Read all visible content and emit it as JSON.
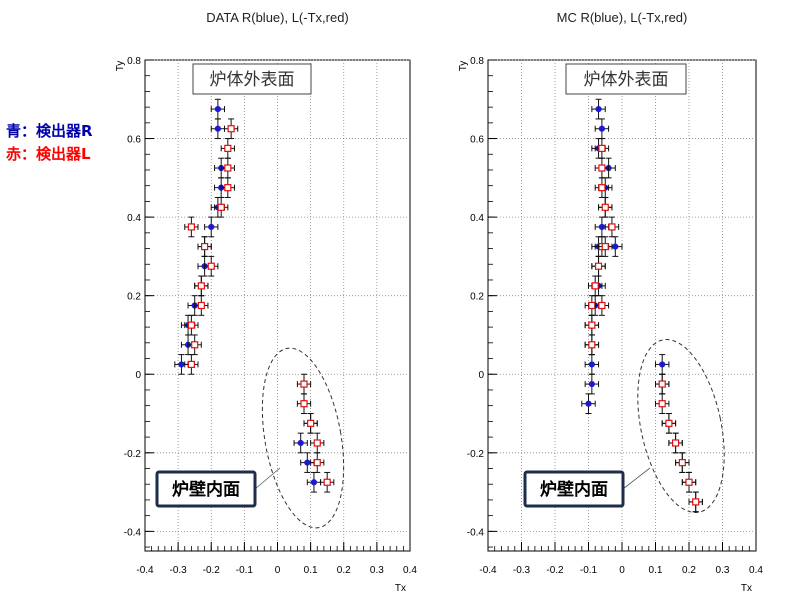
{
  "colors": {
    "blue": "#1a1ad0",
    "red": "#e01010",
    "legend_blue": "#0000aa",
    "legend_red": "#ff0000",
    "grid": "#888888",
    "callout_border": "#1e2d4a"
  },
  "legend": {
    "blue_text": "青：検出器R",
    "red_text": "赤：検出器L"
  },
  "chart_data": [
    {
      "type": "scatter",
      "title": "DATA R(blue), L(-Tx,red)",
      "xlabel": "Tx",
      "ylabel": "Ty",
      "xlim": [
        -0.4,
        0.4
      ],
      "ylim": [
        -0.45,
        0.8
      ],
      "xticks": [
        "-0.4",
        "-0.3",
        "-0.2",
        "-0.1",
        "0",
        "0.1",
        "0.2",
        "0.3",
        "0.4"
      ],
      "yticks": [
        "-0.4",
        "-0.2",
        "0",
        "0.2",
        "0.4",
        "0.6",
        "0.8"
      ],
      "grid": true,
      "annotations": {
        "outer": "炉体外表面",
        "inner": "炉壁内面"
      },
      "series": [
        {
          "name": "R (blue)",
          "marker": "filled-circle",
          "x": [
            -0.29,
            -0.27,
            -0.27,
            -0.25,
            -0.23,
            -0.22,
            -0.22,
            -0.2,
            -0.18,
            -0.17,
            -0.17,
            -0.18,
            -0.18,
            0.07,
            0.09,
            0.1,
            0.11
          ],
          "y": [
            0.025,
            0.075,
            0.125,
            0.175,
            0.225,
            0.275,
            0.325,
            0.375,
            0.425,
            0.475,
            0.525,
            0.625,
            0.675,
            -0.175,
            -0.225,
            -0.125,
            -0.275
          ],
          "xerr": 0.02,
          "yerr": 0.025
        },
        {
          "name": "L (-Tx, red)",
          "marker": "open-square",
          "x": [
            -0.26,
            -0.25,
            -0.26,
            -0.23,
            -0.23,
            -0.2,
            -0.22,
            -0.26,
            -0.17,
            -0.15,
            -0.15,
            -0.15,
            -0.14,
            0.08,
            0.08,
            0.1,
            0.12,
            0.12,
            0.15
          ],
          "y": [
            0.025,
            0.075,
            0.125,
            0.175,
            0.225,
            0.275,
            0.325,
            0.375,
            0.425,
            0.475,
            0.525,
            0.575,
            0.625,
            -0.025,
            -0.075,
            -0.125,
            -0.175,
            -0.225,
            -0.275
          ],
          "xerr": 0.02,
          "yerr": 0.025
        }
      ]
    },
    {
      "type": "scatter",
      "title": "MC R(blue), L(-Tx,red)",
      "xlabel": "Tx",
      "ylabel": "Ty",
      "xlim": [
        -0.4,
        0.4
      ],
      "ylim": [
        -0.45,
        0.8
      ],
      "xticks": [
        "-0.4",
        "-0.3",
        "-0.2",
        "-0.1",
        "0",
        "0.1",
        "0.2",
        "0.3",
        "0.4"
      ],
      "yticks": [
        "-0.4",
        "-0.2",
        "0",
        "0.2",
        "0.4",
        "0.6",
        "0.8"
      ],
      "grid": true,
      "annotations": {
        "outer": "炉体外表面",
        "inner": "炉壁内面"
      },
      "series": [
        {
          "name": "R (blue)",
          "marker": "filled-circle",
          "x": [
            -0.1,
            -0.09,
            -0.09,
            -0.09,
            -0.09,
            -0.08,
            -0.07,
            -0.07,
            -0.07,
            -0.06,
            -0.05,
            -0.05,
            -0.04,
            -0.02,
            -0.06,
            -0.07,
            -0.07,
            0.12,
            0.12,
            0.14,
            0.16,
            0.18,
            0.2,
            0.22
          ],
          "y": [
            -0.075,
            -0.025,
            0.025,
            0.075,
            0.125,
            0.175,
            0.225,
            0.275,
            0.325,
            0.375,
            0.425,
            0.475,
            0.525,
            0.325,
            0.625,
            0.675,
            0.575,
            0.025,
            -0.025,
            -0.125,
            -0.175,
            -0.225,
            -0.275,
            -0.325
          ],
          "xerr": 0.02,
          "yerr": 0.025
        },
        {
          "name": "L (-Tx, red)",
          "marker": "open-square",
          "x": [
            -0.09,
            -0.09,
            -0.09,
            -0.08,
            -0.07,
            -0.06,
            -0.05,
            -0.05,
            -0.03,
            -0.06,
            -0.06,
            -0.06,
            -0.06,
            0.12,
            0.12,
            0.14,
            0.16,
            0.18,
            0.2,
            0.22
          ],
          "y": [
            0.075,
            0.125,
            0.175,
            0.225,
            0.275,
            0.325,
            0.425,
            0.325,
            0.375,
            0.475,
            0.525,
            0.575,
            0.175,
            -0.025,
            -0.075,
            -0.125,
            -0.175,
            -0.225,
            -0.275,
            -0.325
          ],
          "xerr": 0.02,
          "yerr": 0.025
        }
      ]
    }
  ]
}
